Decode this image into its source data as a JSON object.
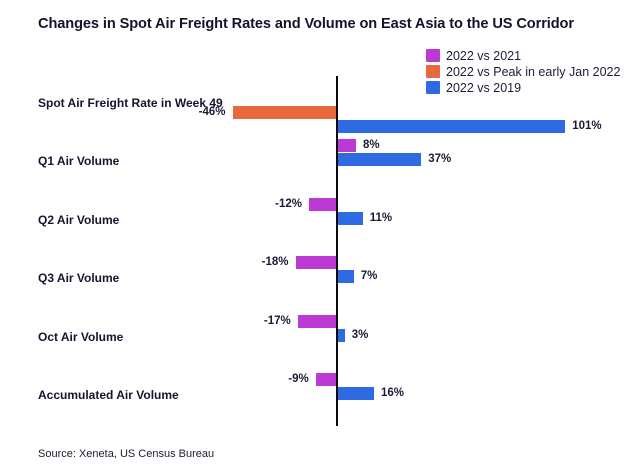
{
  "chart_data": {
    "type": "bar",
    "orientation": "horizontal",
    "title": "Changes in Spot Air Freight Rates and Volume on East Asia to the US Corridor",
    "unit": "percent",
    "value_suffix": "%",
    "value_labels": true,
    "grid": false,
    "legend_position": "top-right",
    "xlim": [
      -60,
      115
    ],
    "categories": [
      "Spot Air Freight Rate in Week 49",
      "Q1 Air Volume",
      "Q2 Air Volume",
      "Q3 Air Volume",
      "Oct Air Volume",
      "Accumulated Air Volume"
    ],
    "series": [
      {
        "name": "2022 vs 2021",
        "color": "#bd39d3",
        "values": [
          null,
          8,
          -12,
          -18,
          -17,
          -9
        ]
      },
      {
        "name": "2022 vs Peak in early Jan 2022",
        "color": "#e7693c",
        "values": [
          -46,
          null,
          null,
          null,
          null,
          null
        ]
      },
      {
        "name": "2022 vs 2019",
        "color": "#2e6be2",
        "values": [
          101,
          37,
          11,
          7,
          3,
          16
        ]
      }
    ]
  },
  "footer": {
    "source": "Source: Xeneta, US Census Bureau"
  }
}
